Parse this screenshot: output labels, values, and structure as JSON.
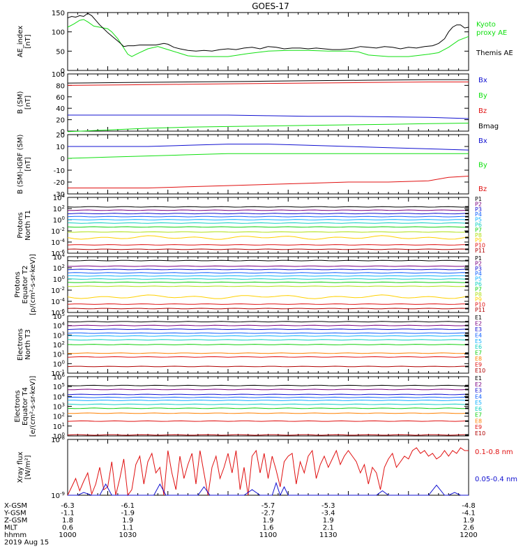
{
  "title": "GOES-17",
  "colors": {
    "black": "#000000",
    "red": "#e01010",
    "green": "#10e010",
    "blue": "#1010d0",
    "p_levels": [
      "#000000",
      "#7a0080",
      "#1010d0",
      "#1060ff",
      "#10b0ff",
      "#10d0c0",
      "#10d010",
      "#b0e010",
      "#ffd000",
      "#ff8000",
      "#e01010",
      "#b00000"
    ]
  },
  "chart_data": [
    {
      "type": "line",
      "id": "ae",
      "ylabel": [
        "AE_index",
        "[nT]"
      ],
      "ylim": [
        0,
        150
      ],
      "yticks": [
        "0",
        "50",
        "100",
        "150"
      ],
      "legend": [
        "Kyoto",
        "proxy AE",
        "Themis AE"
      ],
      "series": [
        {
          "name": "Kyoto proxy AE",
          "color": "#10e010",
          "x": [
            1000,
            1003,
            1006,
            1008,
            1010,
            1013,
            1016,
            1020,
            1022,
            1025,
            1028,
            1030,
            1032,
            1035,
            1040,
            1045,
            1050,
            1055,
            1060,
            1065,
            1070,
            1080,
            1090,
            1100,
            1110,
            1120,
            1130,
            1140,
            1145,
            1150,
            1160,
            1170,
            1180,
            1185,
            1190,
            1195,
            1200
          ],
          "y": [
            112,
            120,
            130,
            132,
            126,
            115,
            112,
            108,
            100,
            82,
            58,
            42,
            36,
            44,
            56,
            62,
            54,
            46,
            38,
            36,
            36,
            36,
            44,
            50,
            52,
            52,
            50,
            50,
            48,
            40,
            36,
            36,
            42,
            46,
            60,
            78,
            88
          ]
        },
        {
          "name": "Themis AE",
          "color": "#000000",
          "x": [
            1000,
            1002,
            1004,
            1006,
            1008,
            1010,
            1012,
            1014,
            1016,
            1018,
            1020,
            1023,
            1026,
            1028,
            1030,
            1033,
            1036,
            1040,
            1044,
            1048,
            1050,
            1053,
            1056,
            1060,
            1064,
            1068,
            1072,
            1076,
            1080,
            1084,
            1088,
            1092,
            1096,
            1100,
            1104,
            1108,
            1112,
            1116,
            1120,
            1124,
            1128,
            1132,
            1136,
            1140,
            1143,
            1146,
            1150,
            1154,
            1158,
            1162,
            1166,
            1170,
            1174,
            1178,
            1182,
            1185,
            1188,
            1190,
            1192,
            1194,
            1196,
            1198,
            1200
          ],
          "y": [
            136,
            140,
            138,
            142,
            140,
            148,
            142,
            130,
            118,
            108,
            98,
            85,
            72,
            62,
            64,
            64,
            66,
            66,
            66,
            70,
            68,
            60,
            56,
            52,
            50,
            52,
            50,
            54,
            56,
            54,
            58,
            60,
            56,
            62,
            60,
            56,
            58,
            58,
            56,
            58,
            56,
            54,
            54,
            56,
            58,
            62,
            60,
            58,
            62,
            60,
            56,
            60,
            58,
            62,
            64,
            70,
            82,
            100,
            112,
            118,
            118,
            110,
            112
          ]
        }
      ]
    },
    {
      "type": "line",
      "id": "bsm",
      "ylabel": [
        "B (SM)",
        "[nT]"
      ],
      "ylim": [
        0,
        100
      ],
      "yticks": [
        "0",
        "20",
        "40",
        "60",
        "80",
        "100"
      ],
      "legend": [
        "Bx",
        "By",
        "Bz",
        "Bmag"
      ],
      "series": [
        {
          "name": "Bmag",
          "color": "#000000",
          "x": [
            1000,
            1030,
            1060,
            1090,
            1120,
            1150,
            1180,
            1200
          ],
          "y": [
            84,
            85,
            86,
            87,
            88,
            89,
            90,
            90
          ]
        },
        {
          "name": "Bz",
          "color": "#e01010",
          "x": [
            1000,
            1030,
            1060,
            1090,
            1120,
            1150,
            1180,
            1200
          ],
          "y": [
            80,
            81,
            82,
            83,
            84,
            85,
            86,
            86
          ]
        },
        {
          "name": "Bx",
          "color": "#1010d0",
          "x": [
            1000,
            1030,
            1060,
            1080,
            1100,
            1120,
            1140,
            1160,
            1180,
            1200
          ],
          "y": [
            28,
            28,
            28,
            28,
            27,
            26,
            26,
            25,
            24,
            22
          ]
        },
        {
          "name": "By",
          "color": "#10e010",
          "x": [
            1000,
            1020,
            1040,
            1060,
            1080,
            1100,
            1120,
            1140,
            1160,
            1180,
            1200
          ],
          "y": [
            -1,
            2,
            5,
            7,
            8,
            9,
            10,
            11,
            12,
            13,
            14
          ]
        }
      ]
    },
    {
      "type": "line",
      "id": "bigrf",
      "ylabel": [
        "B (SM)-IGRF (SM)",
        "[nT]"
      ],
      "ylim": [
        -30,
        20
      ],
      "yticks": [
        "-30",
        "-20",
        "-10",
        "0",
        "10",
        "20"
      ],
      "legend": [
        "Bx",
        "By",
        "Bz"
      ],
      "series": [
        {
          "name": "Bx",
          "color": "#1010d0",
          "x": [
            1000,
            1020,
            1040,
            1060,
            1080,
            1100,
            1120,
            1140,
            1160,
            1180,
            1200
          ],
          "y": [
            10,
            10,
            10,
            11,
            12,
            12,
            11,
            10,
            9,
            8,
            7
          ]
        },
        {
          "name": "By",
          "color": "#10e010",
          "x": [
            1000,
            1020,
            1040,
            1060,
            1080,
            1100,
            1120,
            1140,
            1160,
            1180,
            1200
          ],
          "y": [
            0,
            1,
            2,
            3,
            4,
            4,
            4,
            4,
            4,
            4,
            4
          ]
        },
        {
          "name": "Bz",
          "color": "#e01010",
          "x": [
            1000,
            1020,
            1040,
            1060,
            1080,
            1100,
            1120,
            1140,
            1160,
            1180,
            1190,
            1200
          ],
          "y": [
            -25,
            -25,
            -25,
            -24,
            -23,
            -22,
            -21,
            -20,
            -20,
            -19,
            -16,
            -15
          ]
        }
      ]
    },
    {
      "type": "line",
      "id": "pnorth",
      "ylabel": [
        "Protons",
        "North T1"
      ],
      "scale": "log",
      "ylim": [
        -6,
        4
      ],
      "yticks": [
        "10^-6",
        "10^-4",
        "10^-2",
        "10^0",
        "10^2",
        "10^4"
      ],
      "legend": [
        "P1",
        "P2",
        "P3",
        "P4",
        "P5",
        "P6",
        "P7",
        "P8",
        "P9",
        "P10",
        "P11"
      ],
      "levels": [
        2.3,
        1.7,
        1.1,
        0.55,
        0.0,
        -0.6,
        -1.3,
        -2.2,
        -3.2,
        -4.5,
        -5.3
      ]
    },
    {
      "type": "line",
      "id": "pequator",
      "ylabel": [
        "Protons",
        "Equator T2",
        "[p/(cm²-s-sr-keV)]"
      ],
      "scale": "log",
      "ylim": [
        -6,
        4
      ],
      "yticks": [
        "10^-6",
        "10^-4",
        "10^-2",
        "10^0",
        "10^2",
        "10^4"
      ],
      "legend": [
        "P1",
        "P2",
        "P3",
        "P4",
        "P5",
        "P6",
        "P7",
        "P8",
        "P9",
        "P10",
        "P11"
      ],
      "levels": [
        3.3,
        2.3,
        1.7,
        1.1,
        0.55,
        0.0,
        -0.6,
        -1.3,
        -3.2,
        -4.5,
        -5.3
      ]
    },
    {
      "type": "line",
      "id": "enorth",
      "ylabel": [
        "Electrons",
        "North T3"
      ],
      "scale": "log",
      "ylim": [
        -1,
        5
      ],
      "yticks": [
        "10^-1",
        "10^0",
        "10^1",
        "10^2",
        "10^3",
        "10^4",
        "10^5"
      ],
      "legend": [
        "E1",
        "E2",
        "E3",
        "E4",
        "E5",
        "E6",
        "E7",
        "E8",
        "E9",
        "E10"
      ],
      "levels": [
        4.4,
        4.0,
        3.6,
        3.2,
        2.9,
        2.5,
        2.0,
        1.1,
        0.7,
        -0.3
      ]
    },
    {
      "type": "line",
      "id": "eequator",
      "ylabel": [
        "Electrons",
        "Equator T4",
        "[e/(cm²-s-sr-keV)]"
      ],
      "scale": "log",
      "ylim": [
        0,
        6
      ],
      "yticks": [
        "10^0",
        "10^1",
        "10^2",
        "10^3",
        "10^4",
        "10^5",
        "10^6"
      ],
      "legend": [
        "E1",
        "E2",
        "E3",
        "E4",
        "E5",
        "E6",
        "E7",
        "E8",
        "E9",
        "E10"
      ],
      "levels": [
        5.1,
        4.7,
        4.2,
        3.9,
        3.6,
        3.2,
        2.8,
        2.3,
        1.5,
        0.1
      ]
    },
    {
      "type": "line",
      "id": "xray",
      "ylabel": [
        "Xray flux",
        "[W/m²]"
      ],
      "scale": "log",
      "ylim": [
        -9,
        -8
      ],
      "yticks": [
        "10^-9",
        "10^-8"
      ],
      "legend": [
        "0.1-0.8 nm",
        "0.05-0.4 nm"
      ],
      "series": [
        {
          "name": "0.1-0.8 nm",
          "color": "#e01010",
          "x": [
            1000,
            1002,
            1004,
            1006,
            1008,
            1010,
            1012,
            1014,
            1016,
            1018,
            1020,
            1022,
            1024,
            1026,
            1028,
            1030,
            1032,
            1034,
            1036,
            1038,
            1040,
            1042,
            1044,
            1046,
            1048,
            1050,
            1052,
            1054,
            1056,
            1058,
            1060,
            1062,
            1064,
            1066,
            1068,
            1070,
            1072,
            1074,
            1076,
            1078,
            1080,
            1082,
            1084,
            1086,
            1088,
            1090,
            1092,
            1094,
            1096,
            1098,
            1100,
            1102,
            1104,
            1106,
            1108,
            1110,
            1112,
            1114,
            1116,
            1118,
            1120,
            1122,
            1124,
            1126,
            1128,
            1130,
            1132,
            1134,
            1136,
            1138,
            1140,
            1142,
            1144,
            1146,
            1148,
            1150,
            1152,
            1154,
            1156,
            1158,
            1160,
            1162,
            1164,
            1166,
            1168,
            1170,
            1172,
            1174,
            1176,
            1178,
            1180,
            1182,
            1184,
            1186,
            1188,
            1190,
            1192,
            1194,
            1196,
            1198,
            1200
          ],
          "y": [
            -9.0,
            -8.85,
            -8.7,
            -8.92,
            -8.75,
            -8.6,
            -8.98,
            -8.8,
            -8.5,
            -8.9,
            -8.85,
            -8.4,
            -9.0,
            -8.7,
            -8.35,
            -9.0,
            -8.9,
            -8.45,
            -8.3,
            -8.8,
            -8.4,
            -8.25,
            -8.6,
            -8.5,
            -9.0,
            -8.2,
            -8.6,
            -8.9,
            -8.3,
            -8.7,
            -8.45,
            -8.25,
            -8.8,
            -8.2,
            -8.6,
            -9.0,
            -8.5,
            -8.3,
            -8.7,
            -8.5,
            -8.25,
            -8.6,
            -8.2,
            -8.9,
            -8.5,
            -9.0,
            -8.3,
            -8.2,
            -8.6,
            -8.25,
            -8.7,
            -8.3,
            -8.55,
            -8.85,
            -8.4,
            -8.3,
            -8.25,
            -8.8,
            -8.4,
            -8.6,
            -8.3,
            -8.2,
            -8.7,
            -8.45,
            -8.3,
            -8.5,
            -8.35,
            -8.2,
            -8.45,
            -8.3,
            -8.2,
            -8.3,
            -8.4,
            -8.6,
            -8.45,
            -8.8,
            -8.5,
            -8.6,
            -8.9,
            -8.5,
            -8.35,
            -8.25,
            -8.5,
            -8.4,
            -8.3,
            -8.35,
            -8.2,
            -8.15,
            -8.25,
            -8.2,
            -8.3,
            -8.25,
            -8.35,
            -8.3,
            -8.2,
            -8.3,
            -8.2,
            -8.25,
            -8.15,
            -8.2,
            -8.2
          ]
        },
        {
          "name": "0.05-0.4 nm",
          "color": "#1010d0",
          "x": [
            1000,
            1005,
            1008,
            1012,
            1016,
            1019,
            1022,
            1025,
            1040,
            1043,
            1046,
            1049,
            1052,
            1065,
            1068,
            1071,
            1088,
            1092,
            1096,
            1098,
            1102,
            1104,
            1106,
            1108,
            1110,
            1112,
            1150,
            1154,
            1157,
            1160,
            1180,
            1184,
            1188,
            1190,
            1193,
            1196,
            1200
          ],
          "y": [
            -9.0,
            -9.0,
            -8.95,
            -9.0,
            -9.0,
            -8.8,
            -9.0,
            -9.0,
            -9.0,
            -9.0,
            -8.8,
            -9.0,
            -9.0,
            -9.0,
            -8.85,
            -9.0,
            -9.0,
            -8.9,
            -9.0,
            -9.0,
            -9.0,
            -8.78,
            -9.0,
            -8.85,
            -9.0,
            -9.0,
            -9.0,
            -9.0,
            -8.92,
            -9.0,
            -9.0,
            -8.82,
            -9.0,
            -9.0,
            -8.95,
            -9.0,
            -9.0
          ]
        }
      ]
    }
  ],
  "orbit_table": {
    "rows": [
      {
        "label": "X-GSM",
        "values": [
          "-6.3",
          "-6.1",
          "-5.7",
          "-5.3",
          "-4.8"
        ]
      },
      {
        "label": "Y-GSM",
        "values": [
          "-1.1",
          "-1.9",
          "-2.7",
          "-3.4",
          "-4.1"
        ]
      },
      {
        "label": "Z-GSM",
        "values": [
          "1.8",
          "1.9",
          "1.9",
          "1.9",
          "1.9"
        ]
      },
      {
        "label": "MLT",
        "values": [
          "0.6",
          "1.1",
          "1.6",
          "2.1",
          "2.6"
        ]
      },
      {
        "label": "hhmm",
        "values": [
          "1000",
          "1030",
          "1100",
          "1130",
          "1200"
        ]
      }
    ],
    "date": "2019 Aug 15"
  }
}
